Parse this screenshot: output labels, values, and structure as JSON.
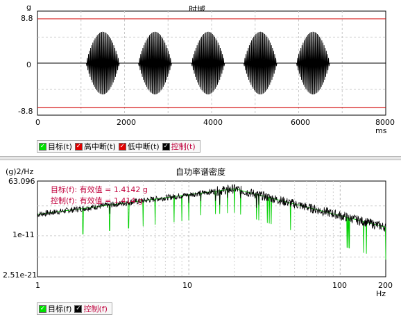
{
  "time_panel": {
    "title": "时域",
    "y_unit": "g",
    "x_unit": "ms",
    "y_ticks": [
      "8.8",
      "0",
      "-8.8"
    ],
    "x_ticks": [
      "0",
      "2000",
      "4000",
      "6000",
      "8000"
    ],
    "legend": [
      {
        "label": "目标(t)",
        "color": "#00e000",
        "label_color": "#000000"
      },
      {
        "label": "高中断(t)",
        "color": "#e00000",
        "label_color": "#000000"
      },
      {
        "label": "低中断(t)",
        "color": "#e00000",
        "label_color": "#000000"
      },
      {
        "label": "控制(t)",
        "color": "#000000",
        "label_color": "#c0003c"
      }
    ]
  },
  "psd_panel": {
    "title": "自功率谱密度",
    "y_unit": "(g)2/Hz",
    "x_unit": "Hz",
    "y_ticks": [
      "63.096",
      "1e-11",
      "2.51e-21"
    ],
    "x_ticks": [
      "1",
      "10",
      "100",
      "200"
    ],
    "annotations": [
      "目标(f): 有效值 = 1.4142 g",
      "控制(f): 有效值 = 1.414 g"
    ],
    "legend": [
      {
        "label": "目标(f)",
        "color": "#00e000",
        "label_color": "#000000"
      },
      {
        "label": "控制(f)",
        "color": "#000000",
        "label_color": "#c0003c"
      }
    ]
  },
  "chart_data": [
    {
      "type": "line",
      "title": "时域",
      "ylabel": "g",
      "xlabel": "ms",
      "xlim": [
        0,
        8000
      ],
      "ylim": [
        -8.8,
        8.8
      ],
      "grid": true,
      "legend_placement": "bottom",
      "limits": {
        "high_abort": 7.5,
        "low_abort": -7.5
      },
      "bursts": [
        {
          "center_ms": 1500,
          "halfwidth_ms": 380,
          "peak_g": 5.3
        },
        {
          "center_ms": 2700,
          "halfwidth_ms": 380,
          "peak_g": 5.3
        },
        {
          "center_ms": 3920,
          "halfwidth_ms": 380,
          "peak_g": 5.3
        },
        {
          "center_ms": 5120,
          "halfwidth_ms": 380,
          "peak_g": 5.3
        },
        {
          "center_ms": 6330,
          "halfwidth_ms": 380,
          "peak_g": 5.3
        }
      ],
      "series": [
        {
          "name": "目标(t)",
          "color": "#00e000"
        },
        {
          "name": "高中断(t)",
          "color": "#e00000"
        },
        {
          "name": "低中断(t)",
          "color": "#e00000"
        },
        {
          "name": "控制(t)",
          "color": "#000000"
        }
      ]
    },
    {
      "type": "line",
      "title": "自功率谱密度",
      "ylabel": "(g)2/Hz",
      "xlabel": "Hz",
      "xscale": "log",
      "yscale": "log",
      "xlim": [
        1,
        200
      ],
      "ylim": [
        2.51e-21,
        63.096
      ],
      "grid": true,
      "legend_placement": "bottom",
      "peak": {
        "freq_hz": 20,
        "value": 1.0
      },
      "series": [
        {
          "name": "目标(f)",
          "color": "#00e000",
          "rms_g": 1.4142
        },
        {
          "name": "控制(f)",
          "color": "#000000",
          "rms_g": 1.414
        }
      ]
    }
  ]
}
